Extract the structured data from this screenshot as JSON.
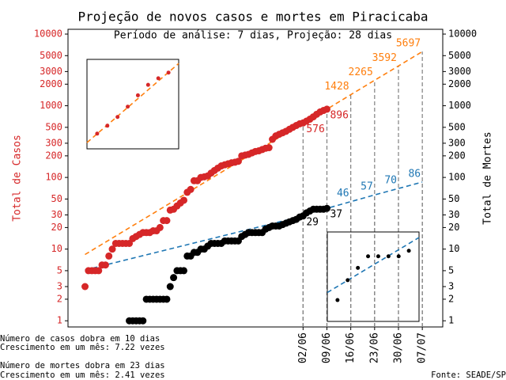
{
  "chart_data": [
    {
      "type": "scatter",
      "title": "Projeção de novos casos e mortes em Piracicaba",
      "subtitle": "Período de análise: 7 dias, Projeção: 28 dias",
      "ylabel": "Total de Casos",
      "ylabel_color": "#d62728",
      "y2label": "Total de Mortes",
      "y2label_color": "#000000",
      "log_y": true,
      "xlim": [
        "25/03",
        "13/07"
      ],
      "xticks": [
        "02/06",
        "09/06",
        "16/06",
        "23/06",
        "30/06",
        "07/07"
      ],
      "ylim": [
        0.82,
        11660
      ],
      "yticks": [
        1,
        2,
        3,
        5,
        10,
        20,
        30,
        50,
        100,
        200,
        300,
        500,
        1000,
        2000,
        3000,
        5000,
        10000
      ],
      "y2lim": [
        0.82,
        11660
      ],
      "y2ticks": [
        1,
        2,
        3,
        5,
        10,
        20,
        30,
        50,
        100,
        200,
        300,
        500,
        1000,
        2000,
        3000,
        5000,
        10000
      ],
      "guide_color": "#808080",
      "series": [
        {
          "color": "#d62728",
          "x": [
            "30/03",
            "31/03",
            "01/04",
            "02/04",
            "03/04",
            "04/04",
            "05/04",
            "06/04",
            "07/04",
            "08/04",
            "09/04",
            "10/04",
            "11/04",
            "12/04",
            "13/04",
            "14/04",
            "15/04",
            "16/04",
            "17/04",
            "18/04",
            "19/04",
            "20/04",
            "21/04",
            "22/04",
            "23/04",
            "24/04",
            "25/04",
            "26/04",
            "27/04",
            "28/04",
            "29/04",
            "30/04",
            "01/05",
            "02/05",
            "03/05",
            "04/05",
            "05/05",
            "06/05",
            "07/05",
            "08/05",
            "09/05",
            "10/05",
            "11/05",
            "12/05",
            "13/05",
            "14/05",
            "15/05",
            "16/05",
            "17/05",
            "18/05",
            "19/05",
            "20/05",
            "21/05",
            "22/05",
            "23/05",
            "24/05",
            "25/05",
            "26/05",
            "27/05",
            "28/05",
            "29/05",
            "30/05",
            "31/05",
            "01/06",
            "02/06",
            "03/06",
            "04/06",
            "05/06",
            "06/06",
            "07/06",
            "08/06",
            "09/06"
          ],
          "values": [
            3,
            5,
            5,
            5,
            5,
            6,
            6,
            8,
            10,
            12,
            12,
            12,
            12,
            12,
            14,
            15,
            16,
            17,
            17,
            17,
            18,
            18,
            20,
            25,
            25,
            35,
            36,
            40,
            44,
            48,
            62,
            68,
            90,
            90,
            100,
            102,
            105,
            115,
            125,
            135,
            145,
            150,
            155,
            160,
            163,
            168,
            200,
            205,
            210,
            220,
            230,
            235,
            245,
            255,
            260,
            340,
            380,
            400,
            420,
            440,
            470,
            500,
            530,
            560,
            576,
            610,
            650,
            700,
            760,
            820,
            860,
            896
          ]
        },
        {
          "color": "#000000",
          "axis": "y2",
          "x": [
            "12/04",
            "13/04",
            "14/04",
            "15/04",
            "16/04",
            "17/04",
            "18/04",
            "19/04",
            "20/04",
            "21/04",
            "22/04",
            "23/04",
            "24/04",
            "25/04",
            "26/04",
            "27/04",
            "28/04",
            "29/04",
            "30/04",
            "01/05",
            "02/05",
            "03/05",
            "04/05",
            "05/05",
            "06/05",
            "07/05",
            "08/05",
            "09/05",
            "10/05",
            "11/05",
            "12/05",
            "13/05",
            "14/05",
            "15/05",
            "16/05",
            "17/05",
            "18/05",
            "19/05",
            "20/05",
            "21/05",
            "22/05",
            "23/05",
            "24/05",
            "25/05",
            "26/05",
            "27/05",
            "28/05",
            "29/05",
            "30/05",
            "31/05",
            "01/06",
            "02/06",
            "03/06",
            "04/06",
            "05/06",
            "06/06",
            "07/06",
            "08/06",
            "09/06"
          ],
          "values": [
            1,
            1,
            1,
            1,
            1,
            2,
            2,
            2,
            2,
            2,
            2,
            2,
            3,
            4,
            5,
            5,
            5,
            8,
            8,
            9,
            9,
            10,
            10,
            11,
            12,
            12,
            12,
            12,
            13,
            13,
            13,
            13,
            13,
            15,
            16,
            17,
            17,
            17,
            17,
            17,
            19,
            20,
            21,
            21,
            21,
            22,
            23,
            24,
            25,
            26,
            28,
            29,
            32,
            34,
            36,
            36,
            36,
            36,
            37
          ]
        }
      ],
      "projections": [
        {
          "color": "#ff7f0e",
          "x": [
            "30/03",
            "02/06",
            "09/06",
            "16/06",
            "23/06",
            "30/06",
            "07/07"
          ],
          "values": [
            8.4,
            576,
            896,
            1428,
            2265,
            3592,
            5697
          ]
        },
        {
          "color": "#1f77b4",
          "axis": "y2",
          "x": [
            "30/03",
            "02/06",
            "09/06",
            "16/06",
            "23/06",
            "30/06",
            "07/07"
          ],
          "values": [
            5.1,
            29,
            37,
            46,
            57,
            70,
            86
          ]
        }
      ],
      "notes": [
        "Número de casos dobra em 10 dias",
        "Crescimento em um mês: 7.22 vezes",
        "Número de mortes dobra em 23 dias",
        "Crescimento em um mês: 2.41 vezes"
      ],
      "source": "Fonte: SEADE/SP"
    },
    {
      "type": "scatter",
      "log_y": true,
      "xlim": [
        "01/06",
        "10/06"
      ],
      "ylim": [
        516,
        986
      ],
      "series": [
        {
          "color": "#d62728",
          "x": [
            "02/06",
            "03/06",
            "04/06",
            "05/06",
            "06/06",
            "07/06",
            "08/06",
            "09/06"
          ],
          "values": [
            576,
            610,
            650,
            700,
            760,
            820,
            860,
            896
          ]
        }
      ],
      "projections": [
        {
          "color": "#ff7f0e",
          "x": [
            "01/06",
            "10/06"
          ],
          "values": [
            540,
            957
          ]
        }
      ]
    },
    {
      "type": "scatter",
      "log_y": true,
      "xlim": [
        "01/06",
        "10/06"
      ],
      "ylim": [
        26.1,
        40.6
      ],
      "series": [
        {
          "color": "#000000",
          "x": [
            "02/06",
            "03/06",
            "04/06",
            "05/06",
            "06/06",
            "07/06",
            "08/06",
            "09/06"
          ],
          "values": [
            29,
            32,
            34,
            36,
            36,
            36,
            36,
            37
          ]
        }
      ],
      "projections": [
        {
          "color": "#1f77b4",
          "x": [
            "01/06",
            "10/06"
          ],
          "values": [
            30.1,
            39.5
          ]
        }
      ]
    }
  ]
}
